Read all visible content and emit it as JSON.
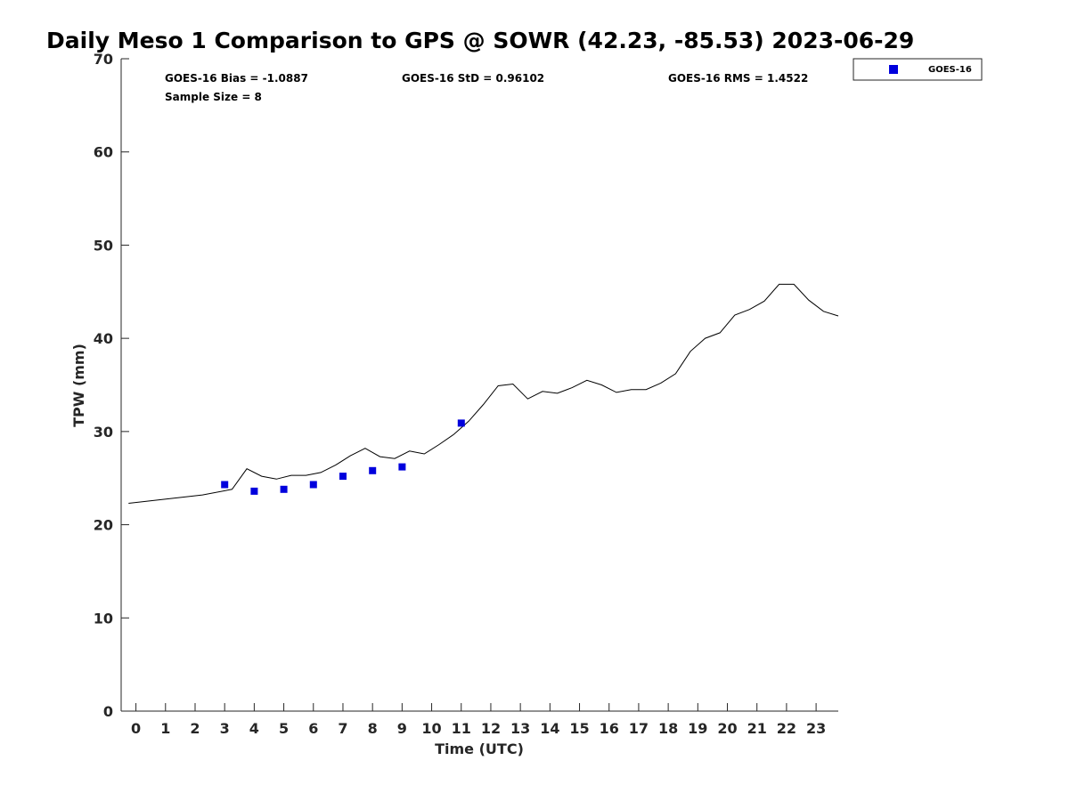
{
  "chart_data": {
    "type": "line",
    "title": "Daily Meso 1 Comparison to GPS @ SOWR (42.23, -85.53) 2023-06-29",
    "xlabel": "Time (UTC)",
    "ylabel": "TPW (mm)",
    "xlim": [
      -0.5,
      23.75
    ],
    "ylim": [
      0,
      70
    ],
    "xticks": [
      0,
      1,
      2,
      3,
      4,
      5,
      6,
      7,
      8,
      9,
      10,
      11,
      12,
      13,
      14,
      15,
      16,
      17,
      18,
      19,
      20,
      21,
      22,
      23
    ],
    "xtick_labels": [
      "0",
      "1",
      "2",
      "3",
      "4",
      "5",
      "6",
      "7",
      "8",
      "9",
      "10",
      "11",
      "12",
      "13",
      "14",
      "15",
      "16",
      "17",
      "18",
      "19",
      "20",
      "21",
      "22",
      "23"
    ],
    "yticks": [
      0,
      10,
      20,
      30,
      40,
      50,
      60,
      70
    ],
    "ytick_labels": [
      "0",
      "10",
      "20",
      "30",
      "40",
      "50",
      "60",
      "70"
    ],
    "grid": false,
    "legend_position": "top-right-outside",
    "gps_line": {
      "color": "#000000",
      "x": [
        -0.25,
        2.25,
        3.25,
        3.75,
        4.25,
        4.75,
        5.25,
        5.75,
        6.25,
        6.75,
        7.25,
        7.75,
        8.25,
        8.75,
        9.25,
        9.75,
        10.25,
        10.75,
        11.25,
        11.75,
        12.25,
        12.75,
        13.25,
        13.75,
        14.25,
        14.75,
        15.25,
        15.75,
        16.25,
        16.75,
        17.25,
        17.75,
        18.25,
        18.75,
        19.25,
        19.75,
        20.25,
        20.75,
        21.25,
        21.75,
        22.25,
        22.75,
        23.25,
        23.75
      ],
      "y": [
        22.3,
        23.2,
        23.8,
        26.0,
        25.2,
        24.9,
        25.3,
        25.3,
        25.6,
        26.4,
        27.4,
        28.2,
        27.3,
        27.1,
        27.9,
        27.6,
        28.6,
        29.7,
        31.1,
        32.9,
        34.9,
        35.1,
        33.5,
        34.3,
        34.1,
        34.7,
        35.5,
        35.0,
        34.2,
        34.5,
        34.5,
        35.2,
        36.2,
        38.6,
        40.0,
        40.6,
        42.5,
        43.1,
        44.0,
        45.8,
        45.8,
        44.1,
        42.9,
        42.4
      ]
    },
    "series": [
      {
        "name": "GOES-16",
        "color": "#0000dd",
        "marker": "square",
        "x": [
          3,
          4,
          5,
          6,
          7,
          8,
          9,
          11
        ],
        "y": [
          24.3,
          23.6,
          23.8,
          24.3,
          25.2,
          25.8,
          26.2,
          30.9
        ]
      }
    ],
    "annotations": {
      "bias": "GOES-16 Bias = -1.0887",
      "std": "GOES-16 StD = 0.96102",
      "rms": "GOES-16 RMS = 1.4522",
      "sample_size": "Sample Size = 8"
    }
  }
}
